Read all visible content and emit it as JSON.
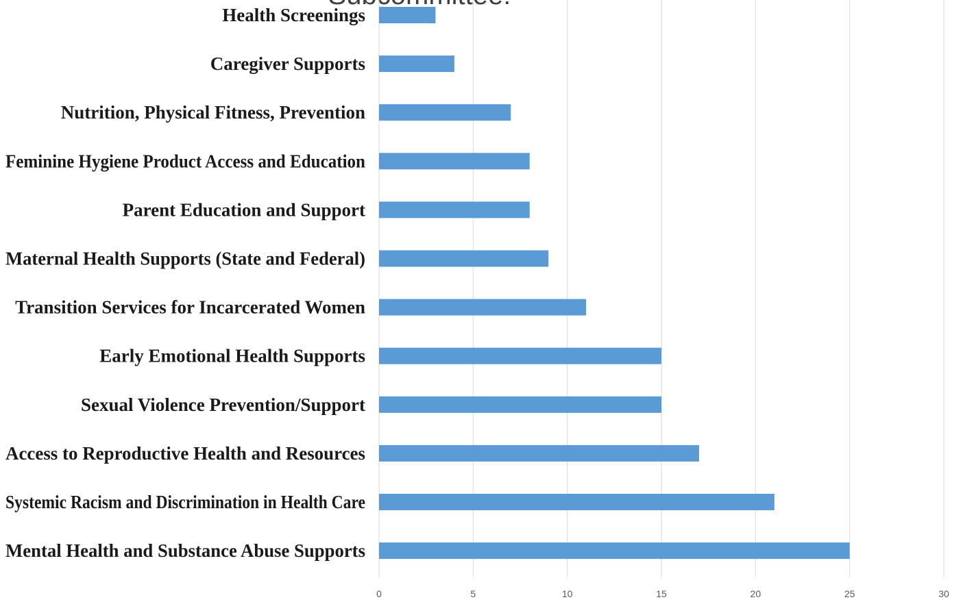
{
  "title_fragment": "Subcommittee:",
  "colors": {
    "bar": "#5b9bd5",
    "gridline": "#d9d9d9",
    "label": "#1a1a1a",
    "tick": "#595959"
  },
  "chart_data": {
    "type": "bar",
    "orientation": "horizontal",
    "title": "Subcommittee:",
    "xlabel": "",
    "ylabel": "",
    "xlim": [
      0,
      30
    ],
    "x_ticks": [
      0,
      5,
      10,
      15,
      20,
      25,
      30
    ],
    "grid": "vertical",
    "legend": "none",
    "categories": [
      "Health Screenings",
      "Caregiver Supports",
      "Nutrition, Physical Fitness, Prevention",
      "Feminine Hygiene Product Access and Education",
      "Parent Education and Support",
      "Maternal Health Supports (State and Federal)",
      "Transition Services for Incarcerated Women",
      "Early Emotional Health Supports",
      "Sexual Violence Prevention/Support",
      "Access to Reproductive Health and Resources",
      "Systemic Racism and Discrimination in Health Care",
      "Mental Health and Substance Abuse Supports"
    ],
    "values": [
      3,
      4,
      7,
      8,
      8,
      9,
      11,
      15,
      15,
      17,
      21,
      25
    ]
  }
}
